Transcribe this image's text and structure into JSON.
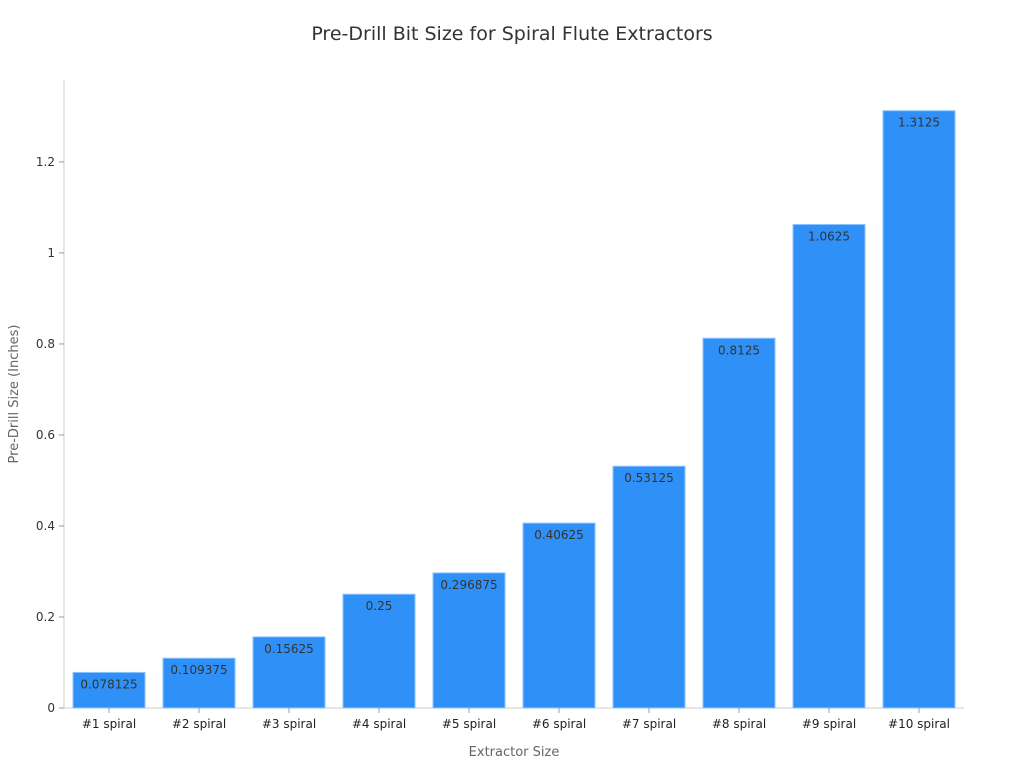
{
  "chart_data": {
    "type": "bar",
    "title": "Pre-Drill Bit Size for Spiral Flute Extractors",
    "xlabel": "Extractor Size",
    "ylabel": "Pre-Drill Size (Inches)",
    "categories": [
      "#1 spiral",
      "#2 spiral",
      "#3 spiral",
      "#4 spiral",
      "#5 spiral",
      "#6 spiral",
      "#7 spiral",
      "#8 spiral",
      "#9 spiral",
      "#10 spiral"
    ],
    "values": [
      0.078125,
      0.109375,
      0.15625,
      0.25,
      0.296875,
      0.40625,
      0.53125,
      0.8125,
      1.0625,
      1.3125
    ],
    "data_labels": [
      "0.078125",
      "0.109375",
      "0.15625",
      "0.25",
      "0.296875",
      "0.40625",
      "0.53125",
      "0.8125",
      "1.0625",
      "1.3125"
    ],
    "yticks": [
      0,
      0.2,
      0.4,
      0.6,
      0.8,
      1,
      1.2
    ],
    "ytick_labels": [
      "0",
      "0.2",
      "0.4",
      "0.6",
      "0.8",
      "1",
      "1.2"
    ],
    "ylim": [
      0,
      1.38
    ],
    "grid": false,
    "legend": "none",
    "colors": {
      "bar": "#2f91f7",
      "bar_edge": "#8cc4ff",
      "label": "#333333",
      "axis": "#cccccc"
    }
  }
}
